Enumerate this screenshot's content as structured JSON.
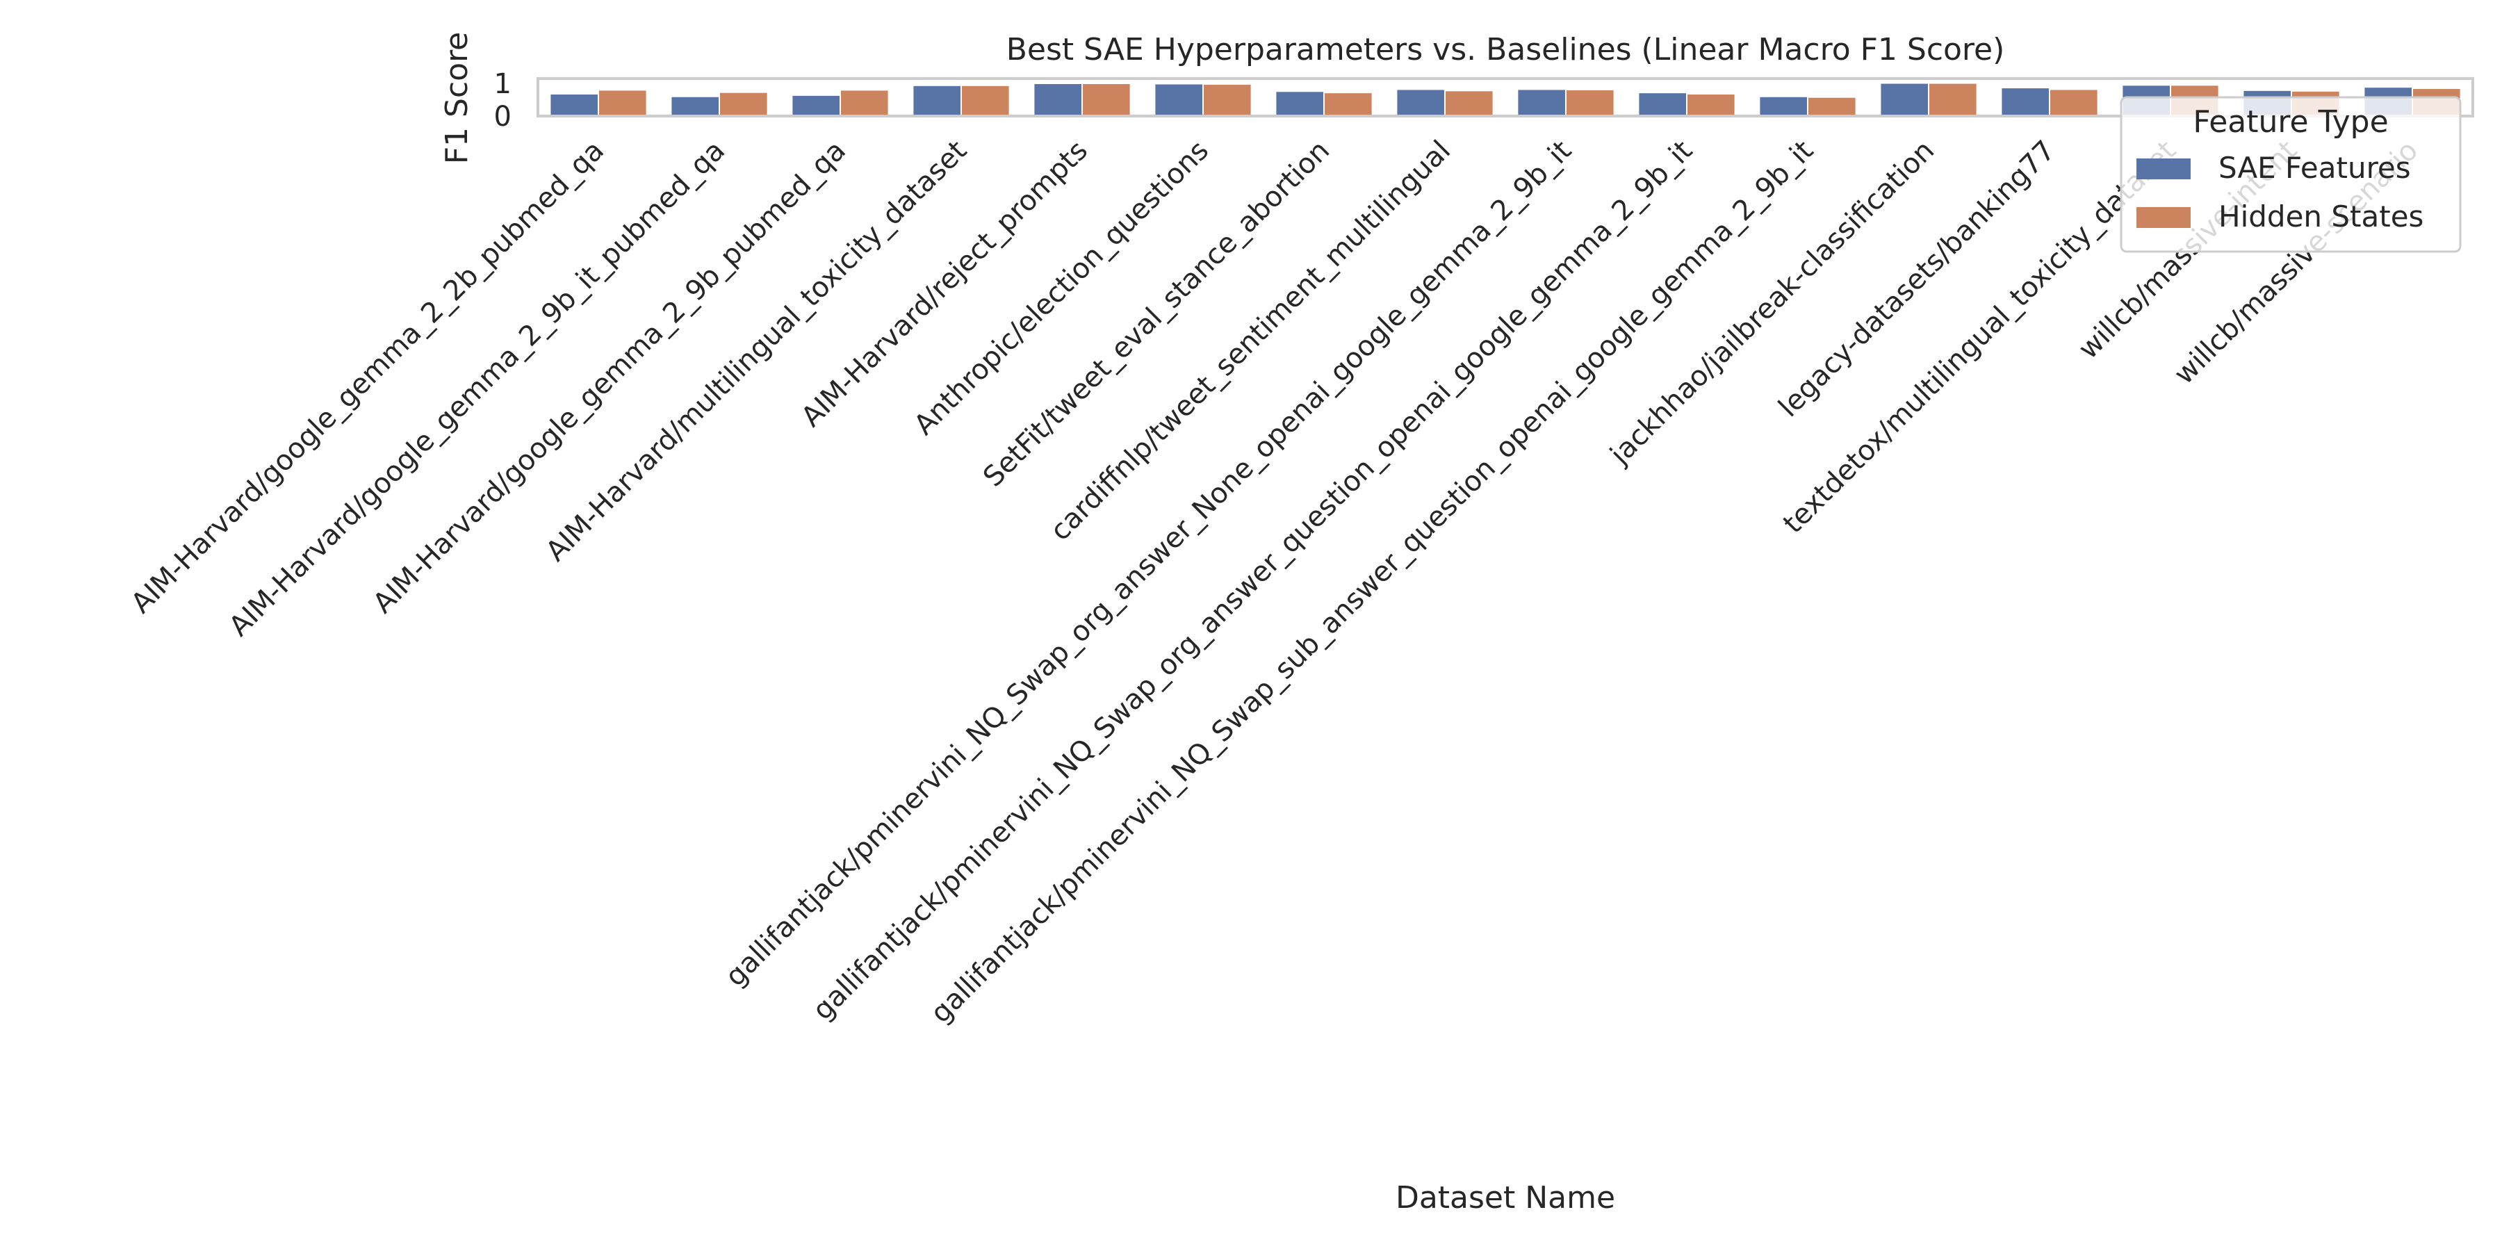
{
  "chart_data": {
    "type": "bar",
    "title": "Best SAE Hyperparameters vs. Baselines (Linear Macro F1 Score)",
    "xlabel": "Dataset Name",
    "ylabel": "F1 Score",
    "ylim": [
      0,
      1.15
    ],
    "yticks": [
      "0",
      "1"
    ],
    "grid": false,
    "legend": {
      "title": "Feature Type",
      "placement": "top-right"
    },
    "categories": [
      "AIM-Harvard/google_gemma_2_2b_pubmed_qa",
      "AIM-Harvard/google_gemma_2_9b_it_pubmed_qa",
      "AIM-Harvard/google_gemma_2_9b_pubmed_qa",
      "AIM-Harvard/multilingual_toxicity_dataset",
      "AIM-Harvard/reject_prompts",
      "Anthropic/election_questions",
      "SetFit/tweet_eval_stance_abortion",
      "cardiffnlp/tweet_sentiment_multilingual",
      "gallifantjack/pminervini_NQ_Swap_org_answer_None_openai_google_gemma_2_9b_it",
      "gallifantjack/pminervini_NQ_Swap_org_answer_question_openai_google_gemma_2_9b_it",
      "gallifantjack/pminervini_NQ_Swap_sub_answer_question_openai_google_gemma_2_9b_it",
      "jackhhao/jailbreak-classification",
      "legacy-datasets/banking77",
      "textdetox/multilingual_toxicity_dataset",
      "willcb/massive-intent",
      "willcb/massive-scenario"
    ],
    "series": [
      {
        "name": "SAE Features",
        "color": "#5874a6",
        "values": [
          0.66,
          0.58,
          0.62,
          0.92,
          0.98,
          0.97,
          0.74,
          0.8,
          0.8,
          0.7,
          0.58,
          0.99,
          0.85,
          0.93,
          0.77,
          0.87
        ]
      },
      {
        "name": "Hidden States",
        "color": "#cc845f",
        "values": [
          0.78,
          0.71,
          0.78,
          0.92,
          0.98,
          0.96,
          0.7,
          0.76,
          0.79,
          0.66,
          0.56,
          0.99,
          0.8,
          0.93,
          0.75,
          0.83
        ]
      }
    ]
  }
}
